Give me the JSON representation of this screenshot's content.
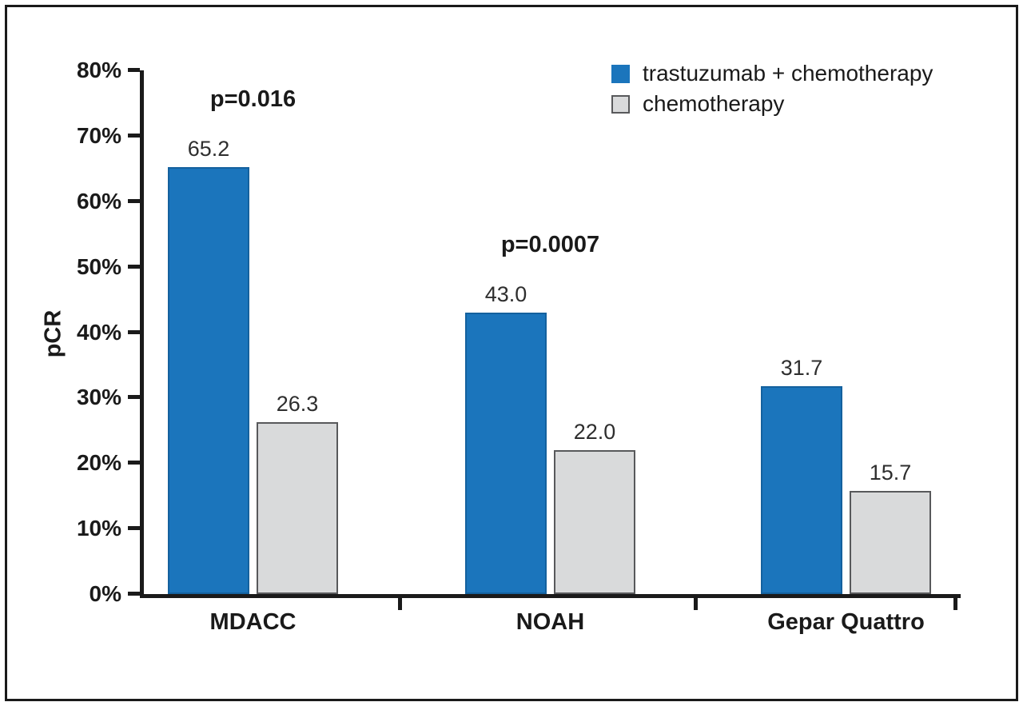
{
  "figure": {
    "background": "#ffffff",
    "border_color": "#1a1a1a"
  },
  "chart_data": {
    "type": "bar",
    "title": "",
    "xlabel": "",
    "ylabel": "pCR",
    "ylim": [
      0,
      80
    ],
    "yticks": [
      "0%",
      "10%",
      "20%",
      "30%",
      "40%",
      "50%",
      "60%",
      "70%",
      "80%"
    ],
    "categories": [
      "MDACC",
      "NOAH",
      "Gepar Quattro"
    ],
    "series": [
      {
        "name": "trastuzumab + chemotherapy",
        "color": "#1b75bc",
        "border_color": "#14619e",
        "values": [
          65.2,
          43.0,
          31.7
        ]
      },
      {
        "name": "chemotherapy",
        "color": "#d9dadb",
        "border_color": "#58595b",
        "values": [
          26.3,
          22.0,
          15.7
        ]
      }
    ],
    "p_values": [
      "p=0.016",
      "p=0.0007",
      ""
    ],
    "value_decimals": 1,
    "legend_position": "top-right",
    "grid": false,
    "axis_color": "#1a1a1a"
  }
}
